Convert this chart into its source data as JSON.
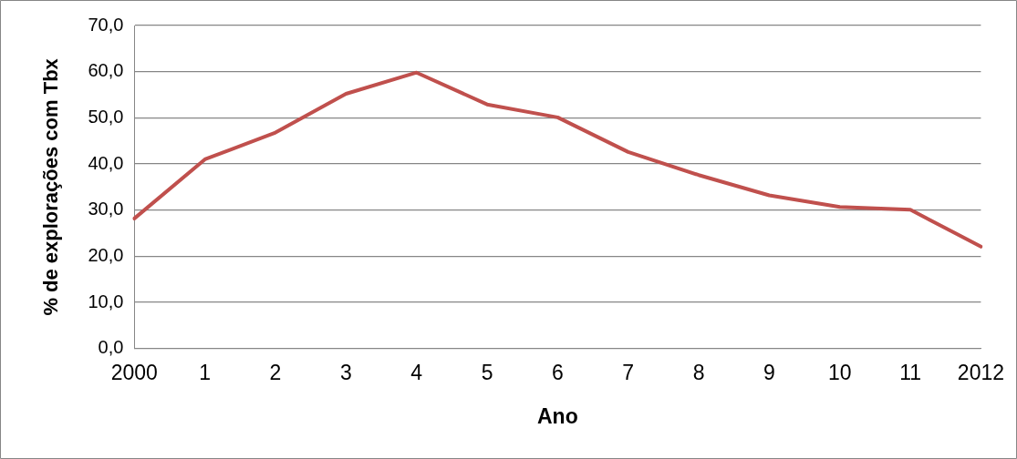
{
  "chart_data": {
    "type": "line",
    "xlabel": "Ano",
    "ylabel": "% de explorações com Tbx",
    "categories": [
      "2000",
      "1",
      "2",
      "3",
      "4",
      "5",
      "6",
      "7",
      "8",
      "9",
      "10",
      "11",
      "2012"
    ],
    "series": [
      {
        "color": "#c0504d",
        "values": [
          28.2,
          41.0,
          46.8,
          55.2,
          59.8,
          52.9,
          50.1,
          42.6,
          37.6,
          33.2,
          30.7,
          30.1,
          22.1
        ]
      }
    ],
    "ylim": [
      0,
      70
    ],
    "yticks": [
      {
        "value": 0,
        "label": "0,0"
      },
      {
        "value": 10,
        "label": "10,0"
      },
      {
        "value": 20,
        "label": "20,0"
      },
      {
        "value": 30,
        "label": "30,0"
      },
      {
        "value": 40,
        "label": "40,0"
      },
      {
        "value": 50,
        "label": "50,0"
      },
      {
        "value": 60,
        "label": "60,0"
      },
      {
        "value": 70,
        "label": "70,0"
      }
    ],
    "grid": "y",
    "legend": false,
    "marker": "none",
    "line_style": "solid"
  }
}
